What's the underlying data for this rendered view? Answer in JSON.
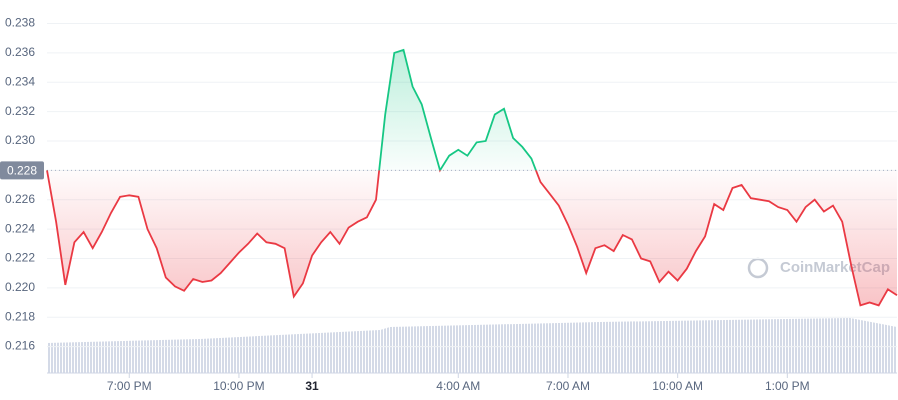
{
  "chart_data": {
    "type": "line",
    "x": [
      16.75,
      17,
      17.25,
      17.5,
      17.75,
      18,
      18.25,
      18.5,
      18.75,
      19,
      19.25,
      19.5,
      19.75,
      20,
      20.25,
      20.5,
      20.75,
      21,
      21.25,
      21.5,
      21.75,
      22,
      22.25,
      22.5,
      22.75,
      23,
      23.25,
      23.5,
      23.75,
      24,
      24.25,
      24.5,
      24.75,
      25,
      25.25,
      25.5,
      25.75,
      26,
      26.25,
      26.5,
      26.75,
      27,
      27.25,
      27.5,
      27.75,
      28,
      28.25,
      28.5,
      28.75,
      29,
      29.25,
      29.5,
      29.75,
      30,
      30.25,
      30.5,
      30.75,
      31,
      31.25,
      31.5,
      31.75,
      32,
      32.25,
      32.5,
      32.75,
      33,
      33.25,
      33.5,
      33.75,
      34,
      34.25,
      34.5,
      34.75,
      35,
      35.25,
      35.5,
      35.75,
      36,
      36.25,
      36.5,
      36.75,
      37,
      37.25,
      37.5,
      37.75,
      38,
      38.25,
      38.5,
      38.75,
      39,
      39.25,
      39.5,
      39.75,
      40
    ],
    "values": [
      0.228,
      0.2245,
      0.2202,
      0.2231,
      0.2238,
      0.2227,
      0.2238,
      0.2251,
      0.2262,
      0.2263,
      0.2262,
      0.224,
      0.2227,
      0.2207,
      0.2201,
      0.2198,
      0.2206,
      0.2204,
      0.2205,
      0.221,
      0.2217,
      0.2224,
      0.223,
      0.2237,
      0.2231,
      0.223,
      0.2227,
      0.2194,
      0.2203,
      0.2222,
      0.2231,
      0.2238,
      0.223,
      0.2241,
      0.2245,
      0.2248,
      0.226,
      0.2318,
      0.236,
      0.2362,
      0.2337,
      0.2325,
      0.2302,
      0.228,
      0.229,
      0.2294,
      0.229,
      0.2299,
      0.23,
      0.2318,
      0.2322,
      0.2302,
      0.2296,
      0.2288,
      0.2272,
      0.2264,
      0.2256,
      0.2243,
      0.2228,
      0.221,
      0.2227,
      0.2229,
      0.2225,
      0.2236,
      0.2233,
      0.222,
      0.2218,
      0.2204,
      0.2211,
      0.2205,
      0.2213,
      0.2225,
      0.2235,
      0.2257,
      0.2253,
      0.2268,
      0.227,
      0.2261,
      0.226,
      0.2259,
      0.2255,
      0.2253,
      0.2245,
      0.2255,
      0.226,
      0.2252,
      0.2256,
      0.2245,
      0.2215,
      0.2188,
      0.219,
      0.2188,
      0.2199,
      0.2195
    ],
    "xlim": [
      16.75,
      40
    ],
    "xticks": [
      {
        "value": 19,
        "label": "7:00 PM"
      },
      {
        "value": 22,
        "label": "10:00 PM"
      },
      {
        "value": 24,
        "label": "31"
      },
      {
        "value": 28,
        "label": "4:00 AM"
      },
      {
        "value": 31,
        "label": "7:00 AM"
      },
      {
        "value": 34,
        "label": "10:00 AM"
      },
      {
        "value": 37,
        "label": "1:00 PM"
      }
    ],
    "ylim": [
      0.2142,
      0.2396
    ],
    "yticks": [
      0.216,
      0.218,
      {
        "value": 0.22,
        "label": "0.220"
      },
      0.222,
      0.224,
      0.226,
      0.228,
      {
        "value": 0.23,
        "label": "0.230"
      },
      0.232,
      0.234,
      0.236,
      0.238
    ],
    "baseline": 0.228,
    "up_color": "#16c784",
    "down_color": "#ea3943",
    "grid": true,
    "watermark": "CoinMarketCap"
  }
}
